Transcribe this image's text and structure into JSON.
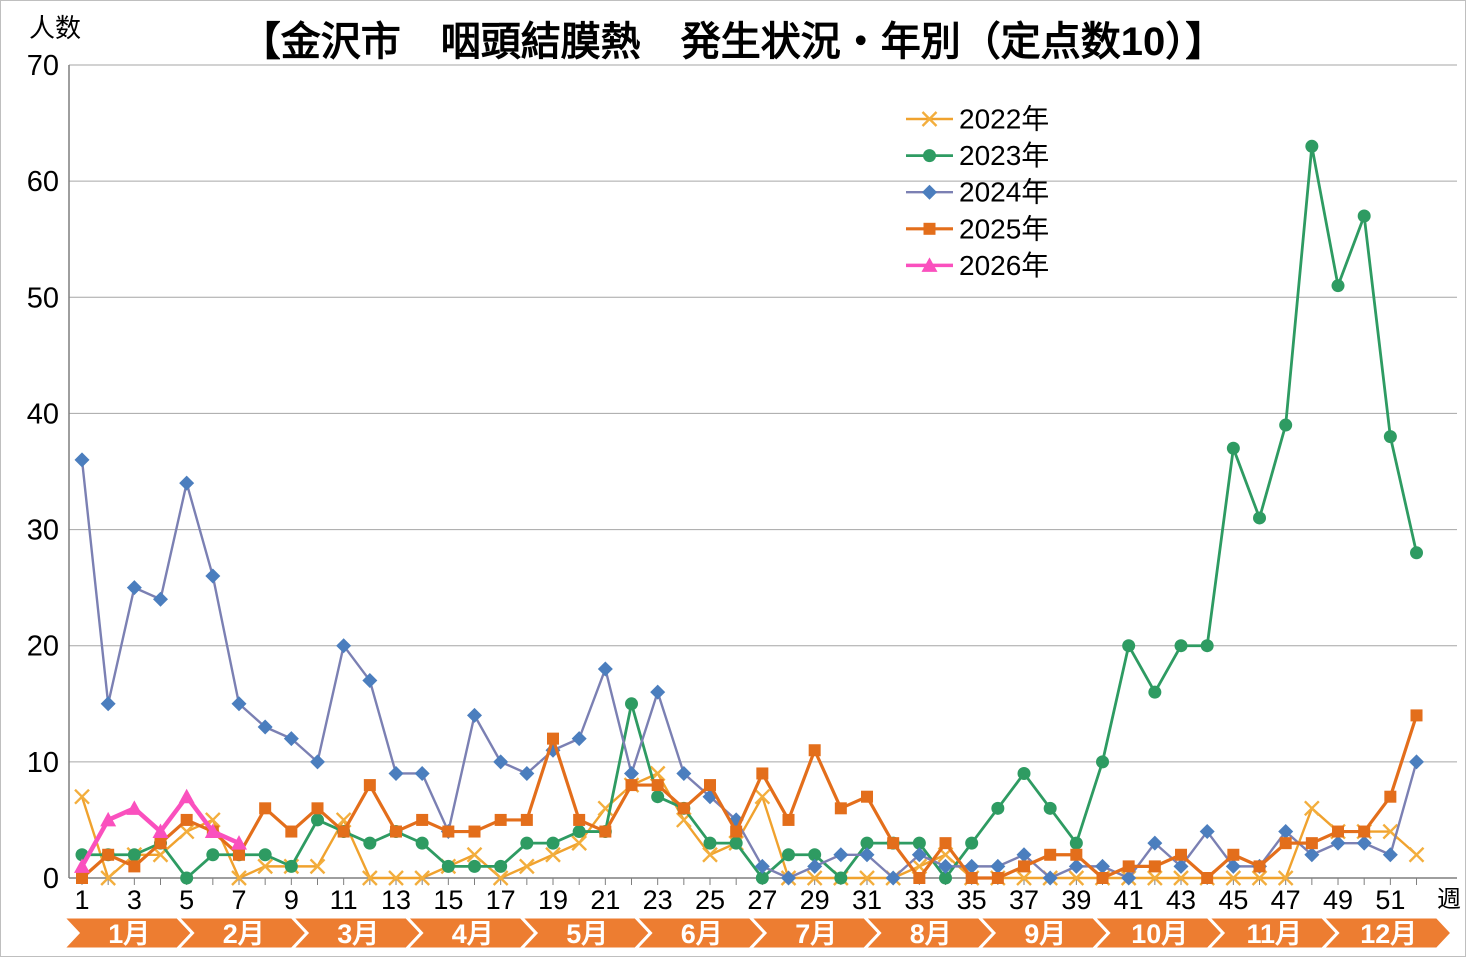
{
  "title": "【金沢市　咽頭結膜熱　発生状況・年別（定点数10）】",
  "y_axis": {
    "label": "人数",
    "ticks": [
      0,
      10,
      20,
      30,
      40,
      50,
      60,
      70
    ]
  },
  "x_axis": {
    "unit_label": "週",
    "tick_labels": [
      1,
      3,
      5,
      7,
      9,
      11,
      13,
      15,
      17,
      19,
      21,
      23,
      25,
      27,
      29,
      31,
      33,
      35,
      37,
      39,
      41,
      43,
      45,
      47,
      49,
      51
    ]
  },
  "month_band": {
    "labels": [
      "1月",
      "2月",
      "3月",
      "4月",
      "5月",
      "6月",
      "7月",
      "8月",
      "9月",
      "10月",
      "11月",
      "12月"
    ],
    "color": "#ED7D31",
    "text_color": "#ffffff"
  },
  "legend": {
    "items": [
      "2022年",
      "2023年",
      "2024年",
      "2025年",
      "2026年"
    ]
  },
  "style_colors": {
    "gridline": "#a6a6a6",
    "axis": "#7f7f7f",
    "label_text": "#000000"
  },
  "chart_data": {
    "type": "line",
    "title": "【金沢市　咽頭結膜熱　発生状況・年別（定点数10）】",
    "xlabel": "週",
    "ylabel": "人数",
    "ylim": [
      0,
      70
    ],
    "y_ticks": [
      0,
      10,
      20,
      30,
      40,
      50,
      60,
      70
    ],
    "x_weeks": 52,
    "x_tick_labels": [
      1,
      3,
      5,
      7,
      9,
      11,
      13,
      15,
      17,
      19,
      21,
      23,
      25,
      27,
      29,
      31,
      33,
      35,
      37,
      39,
      41,
      43,
      45,
      47,
      49,
      51
    ],
    "grid": "horizontal",
    "legend_position": "inside-top-right",
    "months": [
      "1月",
      "2月",
      "3月",
      "4月",
      "5月",
      "6月",
      "7月",
      "8月",
      "9月",
      "10月",
      "11月",
      "12月"
    ],
    "series": [
      {
        "name": "2022年",
        "marker": "x",
        "line_color": "#F0A22E",
        "marker_color": "#F3AE3D",
        "line_width": 2.4,
        "values": [
          7,
          0,
          2,
          2,
          4,
          5,
          0,
          1,
          1,
          1,
          5,
          0,
          0,
          0,
          1,
          2,
          0,
          1,
          2,
          3,
          6,
          8,
          9,
          5,
          2,
          3,
          7,
          0,
          0,
          0,
          0,
          0,
          1,
          2,
          0,
          0,
          0,
          0,
          0,
          0,
          0,
          0,
          0,
          0,
          0,
          0,
          0,
          6,
          4,
          4,
          4,
          2
        ]
      },
      {
        "name": "2023年",
        "marker": "circle",
        "line_color": "#2E9B62",
        "marker_color": "#2E9B62",
        "line_width": 2.8,
        "values": [
          2,
          2,
          2,
          3,
          0,
          2,
          2,
          2,
          1,
          5,
          4,
          3,
          4,
          3,
          1,
          1,
          1,
          3,
          3,
          4,
          4,
          15,
          7,
          6,
          3,
          3,
          0,
          2,
          2,
          0,
          3,
          3,
          3,
          0,
          3,
          6,
          9,
          6,
          3,
          10,
          20,
          16,
          20,
          20,
          37,
          31,
          39,
          63,
          51,
          57,
          38,
          28
        ]
      },
      {
        "name": "2024年",
        "marker": "diamond",
        "line_color": "#7B80B3",
        "marker_color": "#4B7EBE",
        "line_width": 2.4,
        "values": [
          36,
          15,
          25,
          24,
          34,
          26,
          15,
          13,
          12,
          10,
          20,
          17,
          9,
          9,
          4,
          14,
          10,
          9,
          11,
          12,
          18,
          9,
          16,
          9,
          7,
          5,
          1,
          0,
          1,
          2,
          2,
          0,
          2,
          1,
          1,
          1,
          2,
          0,
          1,
          1,
          0,
          3,
          1,
          4,
          1,
          1,
          4,
          2,
          3,
          3,
          2,
          10
        ]
      },
      {
        "name": "2025年",
        "marker": "square",
        "line_color": "#E36E1B",
        "marker_color": "#E36E1B",
        "line_width": 3.2,
        "values": [
          0,
          2,
          1,
          3,
          5,
          4,
          2,
          6,
          4,
          6,
          4,
          8,
          4,
          5,
          4,
          4,
          5,
          5,
          12,
          5,
          4,
          8,
          8,
          6,
          8,
          4,
          9,
          5,
          11,
          6,
          7,
          3,
          0,
          3,
          0,
          0,
          1,
          2,
          2,
          0,
          1,
          1,
          2,
          0,
          2,
          1,
          3,
          3,
          4,
          4,
          7,
          14
        ]
      },
      {
        "name": "2026年",
        "marker": "triangle",
        "line_color": "#FA50BE",
        "marker_color": "#FA50BE",
        "line_width": 4.5,
        "values": [
          1,
          5,
          6,
          4,
          7,
          4,
          3
        ]
      }
    ]
  }
}
